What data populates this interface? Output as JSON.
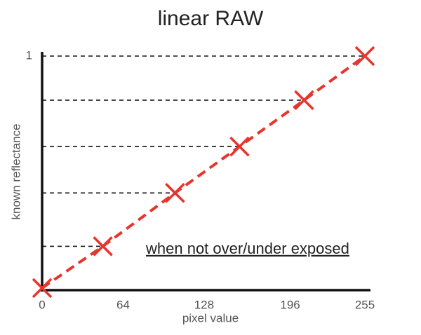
{
  "chart_data": {
    "type": "line",
    "title": "linear RAW",
    "x_label": "pixel value",
    "y_label": "known reflectance",
    "annotation": "when not over/under exposed",
    "x": [
      0,
      48,
      105,
      156,
      207,
      255
    ],
    "series": [
      {
        "color": "#e8342c",
        "values": [
          0,
          0.18,
          0.41,
          0.61,
          0.81,
          1
        ]
      }
    ],
    "xlim": [
      0,
      255
    ],
    "xticks": [
      0,
      64,
      128,
      196,
      255
    ],
    "ylim": [
      0,
      1
    ],
    "yticks": [
      1
    ],
    "guide_lines": true
  }
}
